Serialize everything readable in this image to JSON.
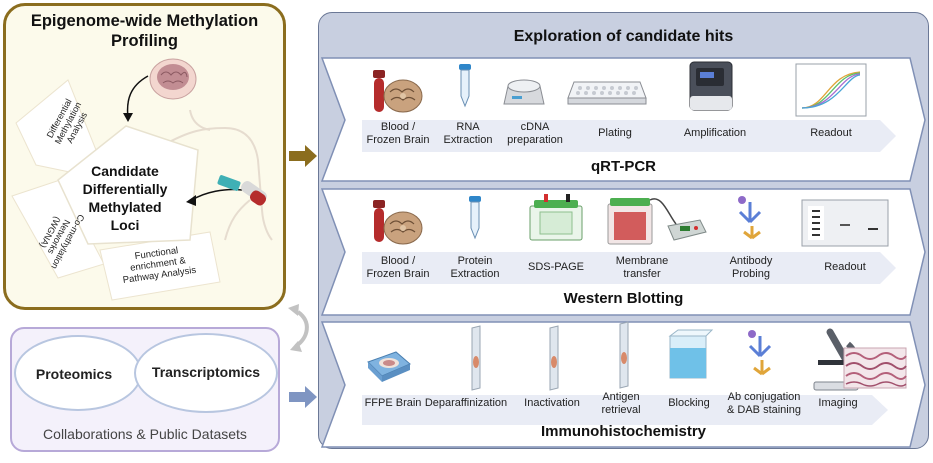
{
  "left_panel": {
    "title": "Epigenome-wide Methylation\nProfiling",
    "center": "Candidate\nDifferentially\nMethylated\nLoci",
    "petal_top": "Differential\nMethylation\nAnalysis",
    "petal_left": "Co-methylation\nNetworks\n(WGNA)",
    "petal_bottom": "Functional\nenrichment &\nPathway Analysis"
  },
  "collab_panel": {
    "circle_left": "Proteomics",
    "circle_right": "Transcriptomics",
    "caption": "Collaborations & Public Datasets"
  },
  "right_panel": {
    "title": "Exploration of candidate hits",
    "rows": [
      {
        "name": "qRT-PCR",
        "steps": [
          "Blood /\nFrozen Brain",
          "RNA\nExtraction",
          "cDNA\npreparation",
          "Plating",
          "Amplification",
          "Readout"
        ]
      },
      {
        "name": "Western Blotting",
        "steps": [
          "Blood /\nFrozen Brain",
          "Protein\nExtraction",
          "SDS-PAGE",
          "Membrane\ntransfer",
          "Antibody\nProbing",
          "Readout"
        ]
      },
      {
        "name": "Immunohistochemistry",
        "steps": [
          "FFPE Brain",
          "Deparaffinization",
          "Inactivation",
          "Antigen\nretrieval",
          "Blocking",
          "Ab conjugation\n& DAB staining",
          "Imaging"
        ]
      }
    ]
  },
  "colors": {
    "left_border": "#8b6d1e",
    "left_fill": "#fcfaeb",
    "right_fill": "#c8cfe0",
    "arrow_fill": "#e9ecf5",
    "collab_border": "#b7a9d8",
    "collab_fill": "#f4f1fb"
  },
  "icons": [
    "blood-tube-icon",
    "brain-section-icon",
    "microtube-icon",
    "centrifuge-icon",
    "plate-icon",
    "thermocycler-icon",
    "amplification-curve-icon",
    "gel-tank-icon",
    "power-supply-icon",
    "antibody-icon",
    "gel-readout-icon",
    "ffpe-block-icon",
    "slide-icon",
    "blocking-cube-icon",
    "microscope-icon",
    "human-figure-icon"
  ]
}
